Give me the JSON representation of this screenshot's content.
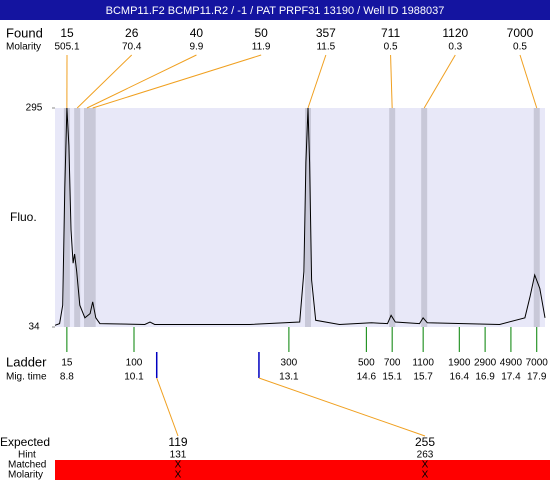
{
  "chart_data": {
    "type": "electropherogram",
    "title": "BCMP11.F2  BCMP11.R2 / -1 / PAT PRPF31 13190 / Well ID 1988037",
    "y_label": "Fluo.",
    "ylim": [
      34,
      295
    ],
    "yticks": [
      34,
      295
    ],
    "xlim": [
      8.57,
      18.06
    ],
    "trace": {
      "color": "#000000",
      "x": [
        8.57,
        8.66,
        8.72,
        8.76,
        8.8,
        8.84,
        8.88,
        8.92,
        8.95,
        8.99,
        9.05,
        9.15,
        9.25,
        9.3,
        9.36,
        9.44,
        10.31,
        10.41,
        10.5,
        12.34,
        13.31,
        13.39,
        13.43,
        13.47,
        13.5,
        13.54,
        13.62,
        14.08,
        14.7,
        15.01,
        15.08,
        15.16,
        15.63,
        15.7,
        15.78,
        17.18,
        17.67,
        17.77,
        17.86,
        17.96,
        18.06
      ],
      "y": [
        36,
        38,
        60,
        200,
        295,
        250,
        150,
        110,
        121,
        100,
        60,
        45,
        50,
        64,
        45,
        38,
        37,
        40,
        37,
        37,
        40,
        100,
        230,
        295,
        230,
        90,
        42,
        37,
        39,
        38,
        48,
        40,
        38,
        45,
        39,
        37,
        45,
        70,
        96,
        80,
        45
      ]
    },
    "found": {
      "label": "Found",
      "molarity_label": "Molarity",
      "color": "#f0a020",
      "sizes": [
        15,
        26,
        40,
        50,
        357,
        711,
        1120,
        7000
      ],
      "molarity": [
        505.1,
        70.4,
        9.9,
        11.9,
        11.5,
        0.5,
        0.3,
        0.5
      ],
      "mig_time": [
        8.8,
        9.0,
        9.19,
        9.3,
        13.47,
        15.1,
        15.72,
        17.9
      ]
    },
    "ladder": {
      "label": "Ladder",
      "time_label": "Mig. time",
      "color": "#008000",
      "sizes": [
        15,
        100,
        300,
        500,
        700,
        1100,
        1900,
        2900,
        4900,
        7000
      ],
      "mig_time": [
        8.8,
        10.1,
        13.1,
        14.6,
        15.1,
        15.7,
        16.4,
        16.9,
        17.4,
        17.9
      ]
    },
    "expected": {
      "label": "Expected",
      "hint_label": "Hint",
      "matched_label": "Matched",
      "molarity_label": "Molarity",
      "color": "#0000c0",
      "sizes": [
        119,
        255
      ],
      "hint": [
        131,
        263
      ],
      "hint_time": [
        10.54,
        12.52
      ],
      "matched": [
        "X",
        "X"
      ],
      "molarity": [
        "X",
        "X"
      ]
    }
  }
}
